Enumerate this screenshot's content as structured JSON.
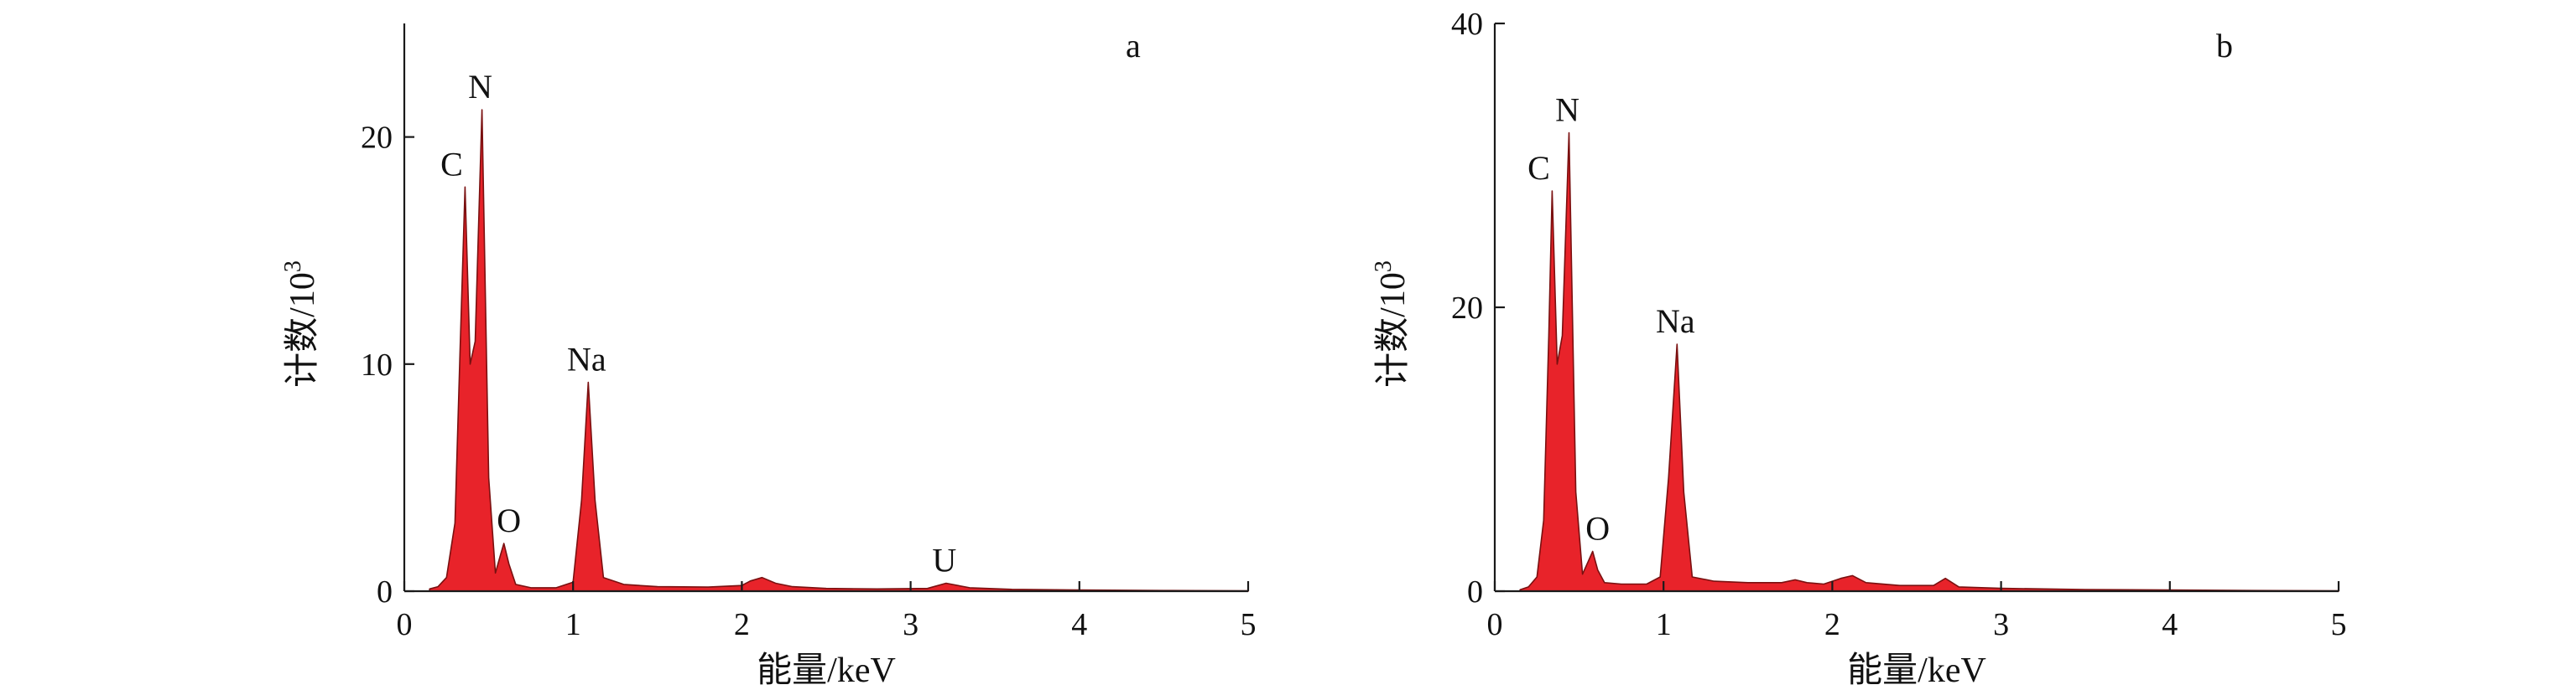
{
  "chart_data": [
    {
      "type": "area",
      "panel_label": "a",
      "xlabel": "能量/keV",
      "ylabel_main": "计数/10",
      "ylabel_sup": "3",
      "xlim": [
        0,
        5
      ],
      "ylim": [
        0,
        25
      ],
      "xticks": [
        0,
        1,
        2,
        3,
        4,
        5
      ],
      "yticks": [
        0,
        10,
        20
      ],
      "grid": false,
      "fill_color": "#e8232a",
      "line_color": "#7a1010",
      "peaks": [
        {
          "label": "C",
          "x": 0.36,
          "y": 17.8
        },
        {
          "label": "N",
          "x": 0.46,
          "y": 21.2
        },
        {
          "label": "O",
          "x": 0.59,
          "y": 2.1
        },
        {
          "label": "Na",
          "x": 1.09,
          "y": 9.2
        },
        {
          "label": "U",
          "x": 3.21,
          "y": 0.35
        }
      ],
      "x": [
        0.15,
        0.2,
        0.25,
        0.3,
        0.33,
        0.36,
        0.39,
        0.42,
        0.46,
        0.5,
        0.54,
        0.57,
        0.59,
        0.62,
        0.66,
        0.75,
        0.9,
        1.0,
        1.05,
        1.09,
        1.13,
        1.18,
        1.3,
        1.5,
        1.8,
        2.0,
        2.05,
        2.12,
        2.2,
        2.3,
        2.5,
        2.8,
        3.1,
        3.21,
        3.35,
        3.6,
        4.0,
        4.5,
        5.0
      ],
      "y": [
        0.1,
        0.2,
        0.6,
        3.0,
        10.5,
        17.8,
        10.0,
        11.0,
        21.2,
        5.0,
        0.8,
        1.6,
        2.1,
        1.2,
        0.3,
        0.15,
        0.15,
        0.4,
        4.0,
        9.2,
        4.0,
        0.6,
        0.3,
        0.2,
        0.18,
        0.25,
        0.45,
        0.6,
        0.35,
        0.2,
        0.12,
        0.1,
        0.12,
        0.35,
        0.15,
        0.08,
        0.05,
        0.03,
        0.02
      ]
    },
    {
      "type": "area",
      "panel_label": "b",
      "xlabel": "能量/keV",
      "ylabel_main": "计数/10",
      "ylabel_sup": "3",
      "xlim": [
        0,
        5
      ],
      "ylim": [
        0,
        40
      ],
      "xticks": [
        0,
        1,
        2,
        3,
        4,
        5
      ],
      "yticks": [
        0,
        20,
        40
      ],
      "grid": false,
      "fill_color": "#e8232a",
      "line_color": "#7a1010",
      "peaks": [
        {
          "label": "C",
          "x": 0.34,
          "y": 28.2
        },
        {
          "label": "N",
          "x": 0.44,
          "y": 32.3
        },
        {
          "label": "O",
          "x": 0.58,
          "y": 2.8
        },
        {
          "label": "Na",
          "x": 1.08,
          "y": 17.4
        }
      ],
      "x": [
        0.15,
        0.2,
        0.25,
        0.29,
        0.32,
        0.34,
        0.37,
        0.4,
        0.44,
        0.48,
        0.52,
        0.55,
        0.58,
        0.61,
        0.65,
        0.75,
        0.9,
        0.98,
        1.03,
        1.08,
        1.12,
        1.17,
        1.3,
        1.5,
        1.7,
        1.78,
        1.85,
        1.95,
        2.05,
        2.12,
        2.2,
        2.4,
        2.6,
        2.67,
        2.75,
        3.0,
        3.5,
        4.0,
        4.5,
        5.0
      ],
      "y": [
        0.1,
        0.3,
        1.0,
        5.0,
        18.0,
        28.2,
        16.0,
        18.0,
        32.3,
        7.0,
        1.2,
        2.0,
        2.8,
        1.5,
        0.6,
        0.5,
        0.5,
        1.0,
        8.0,
        17.4,
        7.0,
        1.0,
        0.7,
        0.6,
        0.6,
        0.8,
        0.6,
        0.5,
        0.9,
        1.1,
        0.6,
        0.4,
        0.4,
        0.9,
        0.3,
        0.2,
        0.12,
        0.08,
        0.05,
        0.03
      ]
    }
  ]
}
